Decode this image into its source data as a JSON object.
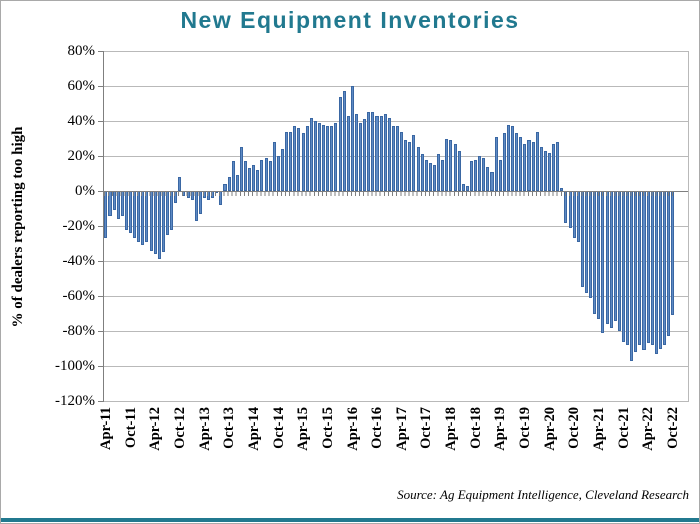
{
  "title": "New Equipment Inventories",
  "source_note": "Source: Ag Equipment Intelligence, Cleveland Research",
  "colors": {
    "title_teal": "#21798f",
    "bar_fill": "#5e8ac4",
    "bar_border": "#3a67a3",
    "gridline": "#b9b9b9",
    "axis_line": "#7f7f7f",
    "bottom_accent": "#21798f"
  },
  "chart_data": {
    "type": "bar",
    "title": "New Equipment Inventories",
    "xlabel": "",
    "ylabel": "% of dealers reporting too high",
    "ylim": [
      -120,
      80
    ],
    "ytick_step": 20,
    "ytick_labels": [
      "80%",
      "60%",
      "40%",
      "20%",
      "0%",
      "-20%",
      "-40%",
      "-60%",
      "-80%",
      "-100%",
      "-120%"
    ],
    "grid": "horizontal",
    "legend": "none",
    "x_start": "Apr-11",
    "x_end": "Oct-22",
    "x_frequency": "monthly",
    "x_tick_interval_months": 6,
    "x_tick_labels": [
      "Apr-11",
      "Oct-11",
      "Apr-12",
      "Oct-12",
      "Apr-13",
      "Oct-13",
      "Apr-14",
      "Oct-14",
      "Apr-15",
      "Oct-15",
      "Apr-16",
      "Oct-16",
      "Apr-17",
      "Oct-17",
      "Apr-18",
      "Oct-18",
      "Apr-19",
      "Oct-19",
      "Apr-20",
      "Oct-20",
      "Apr-21",
      "Oct-21",
      "Apr-22",
      "Oct-22"
    ],
    "values": [
      -27,
      -14,
      -11,
      -16,
      -14,
      -22,
      -24,
      -27,
      -29,
      -31,
      -29,
      -34,
      -36,
      -39,
      -35,
      -25,
      -22,
      -7,
      8,
      -3,
      -4,
      -5,
      -17,
      -13,
      -4,
      -5,
      -4,
      -1,
      -8,
      4,
      8,
      17,
      9,
      25,
      17,
      13,
      15,
      12,
      18,
      19,
      17,
      28,
      20,
      24,
      34,
      34,
      37,
      36,
      33,
      37,
      42,
      40,
      39,
      38,
      37,
      37,
      39,
      54,
      57,
      43,
      60,
      44,
      39,
      41,
      45,
      45,
      43,
      43,
      44,
      42,
      37,
      37,
      34,
      29,
      28,
      32,
      25,
      21,
      18,
      16,
      15,
      21,
      18,
      30,
      29,
      27,
      23,
      4,
      3,
      17,
      18,
      20,
      19,
      14,
      11,
      31,
      18,
      33,
      38,
      37,
      33,
      31,
      27,
      29,
      28,
      34,
      25,
      23,
      22,
      27,
      28,
      2,
      -18,
      -21,
      -27,
      -29,
      -55,
      -58,
      -61,
      -70,
      -73,
      -81,
      -76,
      -78,
      -74,
      -80,
      -86,
      -88,
      -97,
      -92,
      -88,
      -91,
      -87,
      -88,
      -93,
      -90,
      -88,
      -83,
      -71
    ]
  }
}
